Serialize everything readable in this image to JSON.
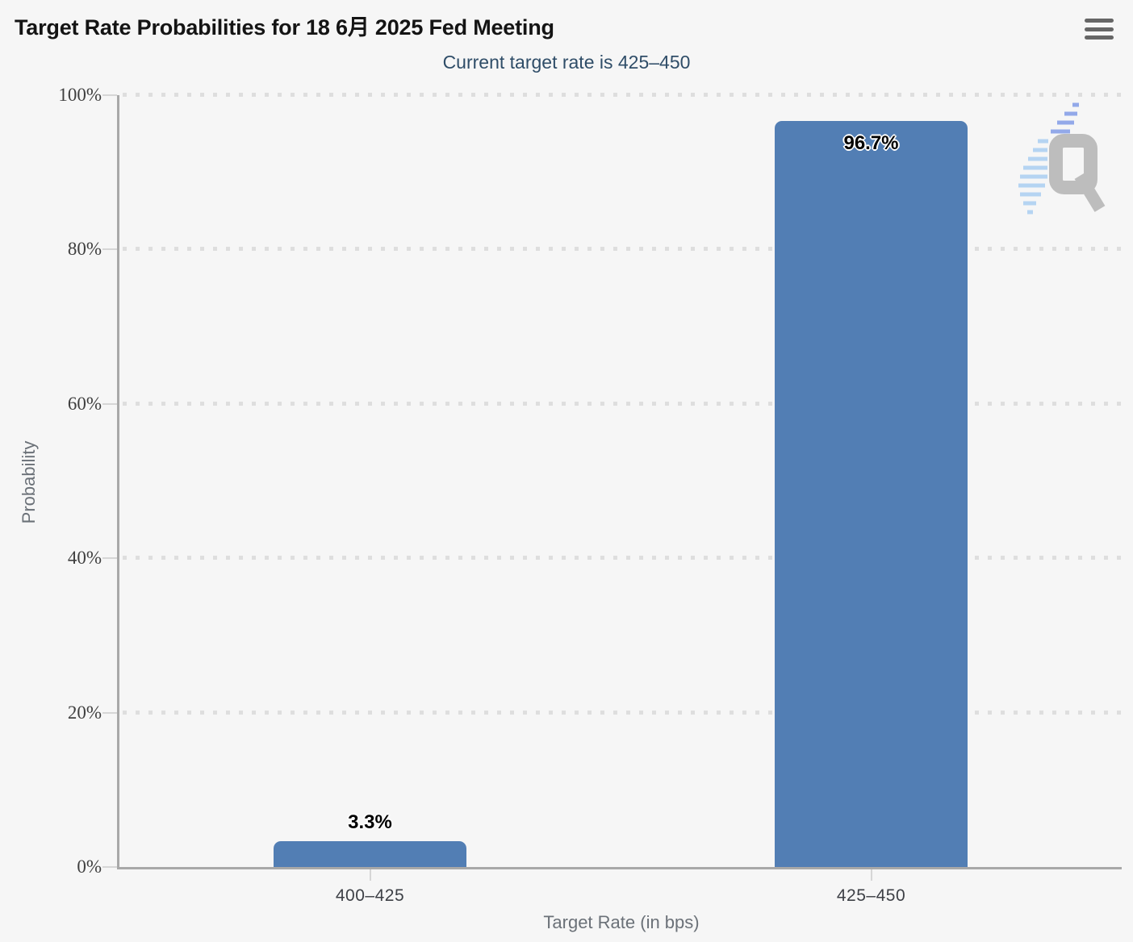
{
  "header": {
    "title": "Target Rate Probabilities for 18 6月 2025 Fed Meeting",
    "subtitle": "Current target rate is 425–450",
    "menu_icon": "hamburger-icon"
  },
  "watermark": {
    "letter": "Q"
  },
  "chart_data": {
    "type": "bar",
    "title": "Target Rate Probabilities for 18 6月 2025 Fed Meeting",
    "subtitle": "Current target rate is 425–450",
    "categories": [
      "400–425",
      "425–450"
    ],
    "values": [
      3.3,
      96.7
    ],
    "value_labels": [
      "3.3%",
      "96.7%"
    ],
    "xlabel": "Target Rate (in bps)",
    "ylabel": "Probability",
    "ylim": [
      0,
      100
    ],
    "ytick_step": 20,
    "ytick_labels": [
      "0%",
      "20%",
      "40%",
      "60%",
      "80%",
      "100%"
    ],
    "legend": "none",
    "grid": "horizontal-dotted",
    "bar_color": "#527EB4",
    "label_inside_threshold": 50
  },
  "colors": {
    "background": "#f6f6f6",
    "bar": "#527EB4",
    "axis_line": "#a8a8a8",
    "grid_dot": "#dedede",
    "tick": "#d6d6d6",
    "title_text": "#141414",
    "subtitle_text": "#2f4d68",
    "ytick_text": "#3f3f3f",
    "xtick_text": "#3d4046",
    "axis_title_text": "#6b7178",
    "menu_icon": "#666666",
    "watermark_gray": "#bdbdbd",
    "watermark_blue": "#b5d4f2"
  }
}
